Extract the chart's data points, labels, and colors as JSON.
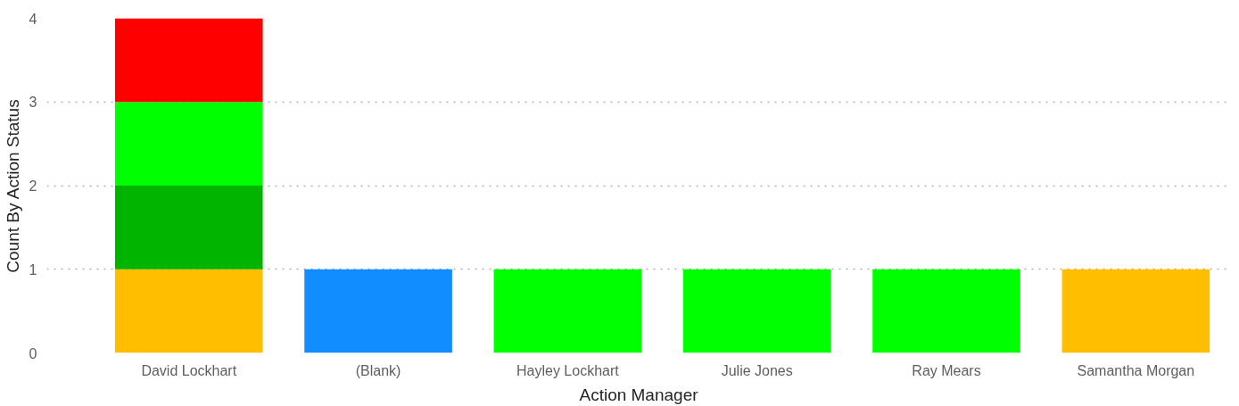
{
  "chart_data": {
    "type": "bar",
    "stacked": true,
    "xlabel": "Action Manager",
    "ylabel": "Count By Action Status",
    "categories": [
      "David Lockhart",
      "(Blank)",
      "Hayley Lockhart",
      "Julie Jones",
      "Ray Mears",
      "Samantha Morgan"
    ],
    "series": [
      {
        "color": "#ffbe00",
        "values": [
          1,
          null,
          null,
          null,
          null,
          1
        ]
      },
      {
        "color": "#118dff",
        "values": [
          null,
          1,
          null,
          null,
          null,
          null
        ]
      },
      {
        "color": "#00b400",
        "values": [
          1,
          null,
          null,
          null,
          null,
          null
        ]
      },
      {
        "color": "#00ff00",
        "values": [
          1,
          null,
          1,
          1,
          1,
          null
        ]
      },
      {
        "color": "#ff0000",
        "values": [
          1,
          null,
          null,
          null,
          null,
          null
        ]
      }
    ],
    "ylim": [
      0,
      4
    ],
    "yticks": [
      0,
      1,
      2,
      3,
      4
    ],
    "grid": "y"
  }
}
